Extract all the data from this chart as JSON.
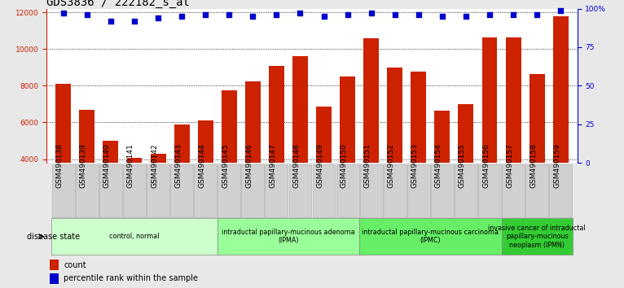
{
  "title": "GDS3836 / 222182_s_at",
  "samples": [
    "GSM490138",
    "GSM490139",
    "GSM490140",
    "GSM490141",
    "GSM490142",
    "GSM490143",
    "GSM490144",
    "GSM490145",
    "GSM490146",
    "GSM490147",
    "GSM490148",
    "GSM490149",
    "GSM490150",
    "GSM490151",
    "GSM490152",
    "GSM490153",
    "GSM490154",
    "GSM490155",
    "GSM490156",
    "GSM490157",
    "GSM490158",
    "GSM490159"
  ],
  "counts": [
    8100,
    6700,
    5000,
    4050,
    4300,
    5900,
    6100,
    7750,
    8250,
    9100,
    9600,
    6850,
    8500,
    10600,
    9000,
    8750,
    6650,
    7000,
    10650,
    10650,
    8650,
    11800
  ],
  "percentile_ranks": [
    97,
    96,
    92,
    92,
    94,
    95,
    96,
    96,
    95,
    96,
    97,
    95,
    96,
    97,
    96,
    96,
    95,
    95,
    96,
    96,
    96,
    99
  ],
  "bar_color": "#cc2200",
  "dot_color": "#0000cc",
  "ylim_left": [
    3800,
    12200
  ],
  "ylim_right": [
    0,
    100
  ],
  "yticks_left": [
    4000,
    6000,
    8000,
    10000,
    12000
  ],
  "yticks_right": [
    0,
    25,
    50,
    75,
    100
  ],
  "ytick_labels_right": [
    "0",
    "25",
    "50",
    "75",
    "100%"
  ],
  "groups": [
    {
      "label": "control, normal",
      "start": 0,
      "end": 7,
      "color": "#ccffcc"
    },
    {
      "label": "intraductal papillary-mucinous adenoma\n(IPMA)",
      "start": 7,
      "end": 13,
      "color": "#99ff99"
    },
    {
      "label": "intraductal papillary-mucinous carcinoma\n(IPMC)",
      "start": 13,
      "end": 19,
      "color": "#66ee66"
    },
    {
      "label": "invasive cancer of intraductal\npapillary-mucinous\nneoplasm (IPMN)",
      "start": 19,
      "end": 22,
      "color": "#33cc33"
    }
  ],
  "disease_state_label": "disease state",
  "legend_count_label": "count",
  "legend_percentile_label": "percentile rank within the sample",
  "bg_color": "#e8e8e8",
  "plot_bg_color": "#ffffff",
  "xlabel_bg_color": "#d0d0d0",
  "grid_color": "#000000",
  "title_fontsize": 10,
  "tick_fontsize": 6.5,
  "label_fontsize": 7,
  "bar_width": 0.65
}
